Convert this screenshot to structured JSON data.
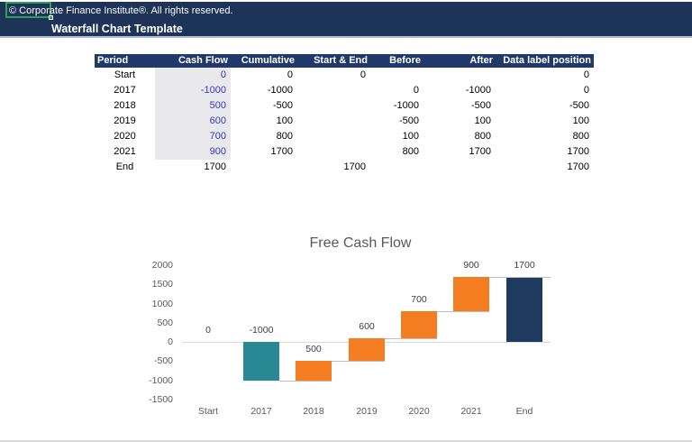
{
  "banner": {
    "copyright": "© Corporate Finance Institute®. All rights reserved.",
    "title": "Waterfall Chart Template"
  },
  "table": {
    "headers": [
      "Period",
      "Cash Flow",
      "Cumulative",
      "Start & End",
      "Before",
      "After",
      "Data label position"
    ],
    "rows": [
      [
        "Start",
        "0",
        "0",
        "0",
        "",
        "",
        "0"
      ],
      [
        "2017",
        "-1000",
        "-1000",
        "",
        "0",
        "-1000",
        "0"
      ],
      [
        "2018",
        "500",
        "-500",
        "",
        "-1000",
        "-500",
        "-500"
      ],
      [
        "2019",
        "600",
        "100",
        "",
        "-500",
        "100",
        "100"
      ],
      [
        "2020",
        "700",
        "800",
        "",
        "100",
        "800",
        "800"
      ],
      [
        "2021",
        "900",
        "1700",
        "",
        "800",
        "1700",
        "1700"
      ],
      [
        "End",
        "1700",
        "",
        "1700",
        "",
        "",
        "1700"
      ]
    ],
    "input_column": "Cash Flow"
  },
  "chart_data": {
    "type": "bar",
    "subtype": "waterfall",
    "title": "Free Cash Flow",
    "categories": [
      "Start",
      "2017",
      "2018",
      "2019",
      "2020",
      "2021",
      "End"
    ],
    "values": [
      0,
      -1000,
      500,
      600,
      700,
      900,
      1700
    ],
    "cumulative": [
      0,
      -1000,
      -500,
      100,
      800,
      1700,
      1700
    ],
    "data_labels": [
      "0",
      "-1000",
      "500",
      "600",
      "700",
      "900",
      "1700"
    ],
    "y_ticks": [
      2000,
      1500,
      1000,
      500,
      0,
      -500,
      -1000,
      -1500
    ],
    "ylim": [
      -1500,
      2000
    ],
    "grid": false,
    "legend": false,
    "colors": {
      "decrease": "#2A8794",
      "increase": "#F47D21",
      "total": "#1E3A5F",
      "connector": "#BFBFBF",
      "axis_line": "#D9D9D9",
      "data_label": "#404040",
      "tick_label": "#595959",
      "title": "#595959"
    }
  },
  "colors": {
    "banner_bg": "#1D3357",
    "table_header_bg": "#20396A",
    "input_cell_bg": "#E9E9EC",
    "input_cell_text": "#3333CC",
    "selection_green": "#2E9E5B"
  }
}
